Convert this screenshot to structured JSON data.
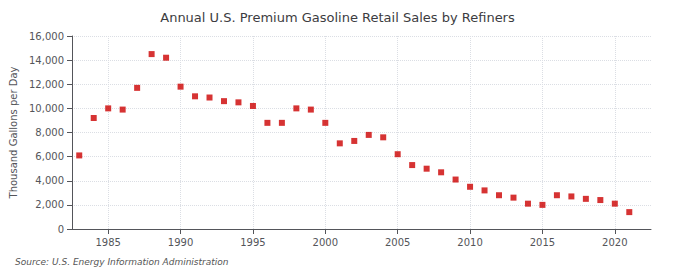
{
  "chart_data": {
    "type": "scatter",
    "title": "Annual U.S. Premium Gasoline Retail Sales by Refiners",
    "ylabel": "Thousand Gallons per Day",
    "source": "Source: U.S. Energy Information Administration",
    "color": "#cc0000",
    "marker": "square",
    "grid": true,
    "xlim": [
      1982.5,
      2022.5
    ],
    "xticks": [
      1985,
      1990,
      1995,
      2000,
      2005,
      2010,
      2015,
      2020
    ],
    "ylim": [
      0,
      16000
    ],
    "yticks": [
      0,
      {
        "value": 2000,
        "label": "2,000"
      },
      {
        "value": 4000,
        "label": "4,000"
      },
      {
        "value": 6000,
        "label": "6,000"
      },
      {
        "value": 8000,
        "label": "8,000"
      },
      {
        "value": 10000,
        "label": "10,000"
      },
      {
        "value": 12000,
        "label": "12,000"
      },
      {
        "value": 14000,
        "label": "14,000"
      },
      {
        "value": 16000,
        "label": "16,000"
      }
    ],
    "x": [
      1983,
      1984,
      1985,
      1986,
      1987,
      1988,
      1989,
      1990,
      1991,
      1992,
      1993,
      1994,
      1995,
      1996,
      1997,
      1998,
      1999,
      2000,
      2001,
      2002,
      2003,
      2004,
      2005,
      2006,
      2007,
      2008,
      2009,
      2010,
      2011,
      2012,
      2013,
      2014,
      2015,
      2016,
      2017,
      2018,
      2019,
      2020,
      2021
    ],
    "values": [
      6100,
      9200,
      10000,
      9900,
      11700,
      14500,
      14200,
      11800,
      11000,
      10900,
      10600,
      10500,
      10200,
      8800,
      8800,
      10000,
      9900,
      8800,
      7100,
      7300,
      7800,
      7600,
      6200,
      5300,
      5000,
      4700,
      4100,
      3500,
      3200,
      2800,
      2600,
      2100,
      2000,
      2800,
      2700,
      2500,
      2400,
      2100,
      1400
    ]
  }
}
